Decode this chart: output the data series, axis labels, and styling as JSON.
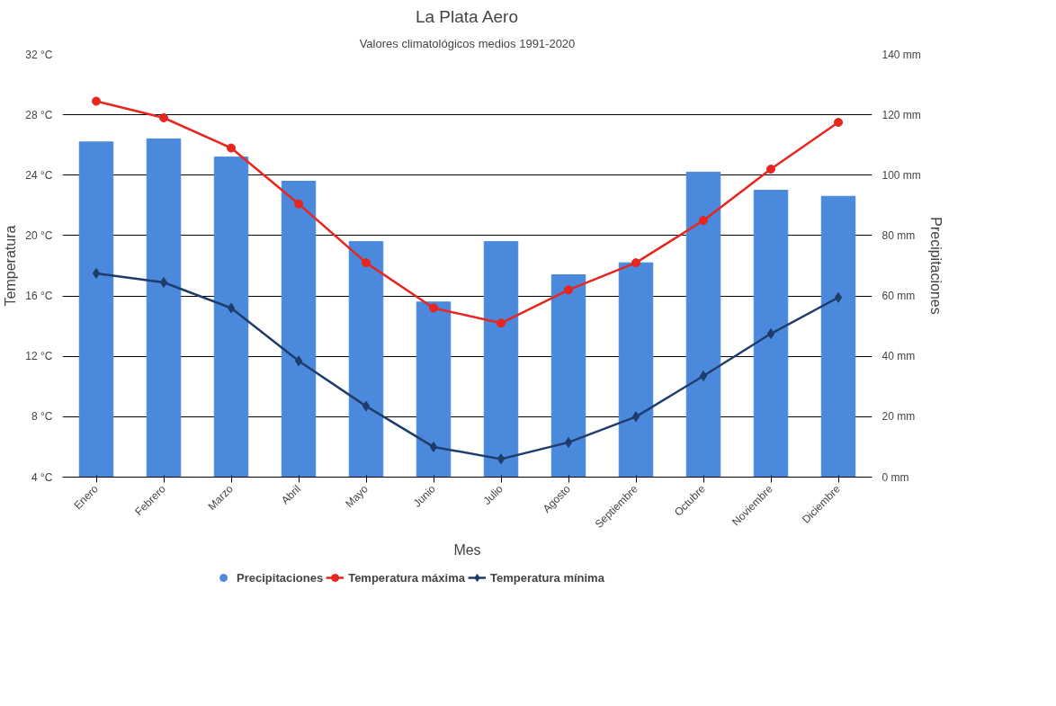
{
  "chart_data": {
    "type": "bar",
    "title": "La Plata Aero",
    "subtitle": "Valores climatológicos medios 1991-2020",
    "xlabel": "Mes",
    "ylabel": "Temperatura",
    "y2label": "Precipitaciones",
    "categories": [
      "Enero",
      "Febrero",
      "Marzo",
      "Abril",
      "Mayo",
      "Junio",
      "Julio",
      "Agosto",
      "Septiembre",
      "Octubre",
      "Noviembre",
      "Diciembre"
    ],
    "series": [
      {
        "name": "Precipitaciones",
        "axis": "y2",
        "color": "#4a89dc",
        "values": [
          111,
          112,
          106,
          98,
          78,
          58,
          78,
          67,
          71,
          101,
          95,
          93
        ]
      },
      {
        "name": "Temperatura máxima",
        "type": "line",
        "marker": "circle",
        "color": "#e8251f",
        "values": [
          28.9,
          27.8,
          25.8,
          22.1,
          18.2,
          15.2,
          14.2,
          16.4,
          18.2,
          21.0,
          24.4,
          27.5
        ]
      },
      {
        "name": "Temperatura mínima",
        "type": "line",
        "marker": "diamond",
        "color": "#1f3d6b",
        "values": [
          17.5,
          16.9,
          15.2,
          11.7,
          8.7,
          6.0,
          5.2,
          6.3,
          8.0,
          10.7,
          13.5,
          15.9
        ]
      }
    ],
    "ylim": [
      4,
      32
    ],
    "yticks": [
      {
        "value": 4,
        "label": "4 °C"
      },
      {
        "value": 8,
        "label": "8 °C"
      },
      {
        "value": 12,
        "label": "12 °C"
      },
      {
        "value": 16,
        "label": "16 °C"
      },
      {
        "value": 20,
        "label": "20 °C"
      },
      {
        "value": 24,
        "label": "24 °C"
      },
      {
        "value": 28,
        "label": "28 °C"
      },
      {
        "value": 32,
        "label": "32 °C"
      }
    ],
    "y2lim": [
      0,
      140
    ],
    "y2ticks": [
      {
        "value": 0,
        "label": "0 mm"
      },
      {
        "value": 20,
        "label": "20 mm"
      },
      {
        "value": 40,
        "label": "40 mm"
      },
      {
        "value": 60,
        "label": "60 mm"
      },
      {
        "value": 80,
        "label": "80 mm"
      },
      {
        "value": 100,
        "label": "100 mm"
      },
      {
        "value": 120,
        "label": "120 mm"
      },
      {
        "value": 140,
        "label": "140 mm"
      }
    ],
    "grid": "y",
    "legend": "bottom",
    "line_style": "solid"
  }
}
